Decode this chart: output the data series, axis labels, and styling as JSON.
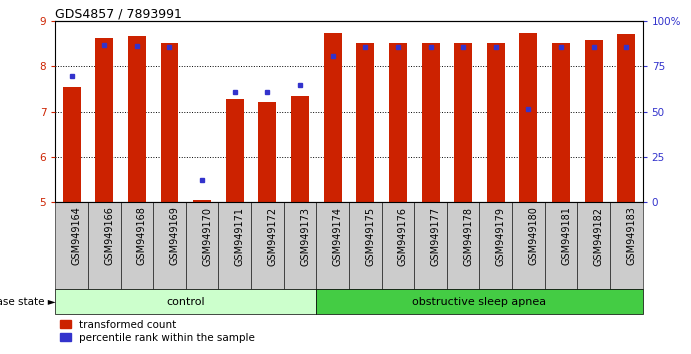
{
  "title": "GDS4857 / 7893991",
  "samples": [
    "GSM949164",
    "GSM949166",
    "GSM949168",
    "GSM949169",
    "GSM949170",
    "GSM949171",
    "GSM949172",
    "GSM949173",
    "GSM949174",
    "GSM949175",
    "GSM949176",
    "GSM949177",
    "GSM949178",
    "GSM949179",
    "GSM949180",
    "GSM949181",
    "GSM949182",
    "GSM949183"
  ],
  "red_values": [
    7.55,
    8.62,
    8.68,
    8.52,
    5.05,
    7.27,
    7.22,
    7.35,
    8.75,
    8.52,
    8.52,
    8.52,
    8.52,
    8.52,
    8.75,
    8.52,
    8.58,
    8.72
  ],
  "blue_values": [
    7.78,
    8.47,
    8.45,
    8.43,
    5.5,
    7.43,
    7.43,
    7.6,
    8.23,
    8.43,
    8.43,
    8.43,
    8.43,
    8.43,
    7.07,
    8.43,
    8.43,
    8.43
  ],
  "control_count": 8,
  "ylim": [
    5,
    9
  ],
  "yticks": [
    5,
    6,
    7,
    8,
    9
  ],
  "right_yticks_pct": [
    0,
    25,
    50,
    75,
    100
  ],
  "right_yticklabels": [
    "0",
    "25",
    "50",
    "75",
    "100%"
  ],
  "bar_color": "#CC2200",
  "blue_color": "#3333CC",
  "control_color": "#CCFFCC",
  "apnea_color": "#44CC44",
  "label_fontsize": 7.0,
  "tick_fontsize": 7.5,
  "bar_width": 0.55,
  "title_fontsize": 9
}
